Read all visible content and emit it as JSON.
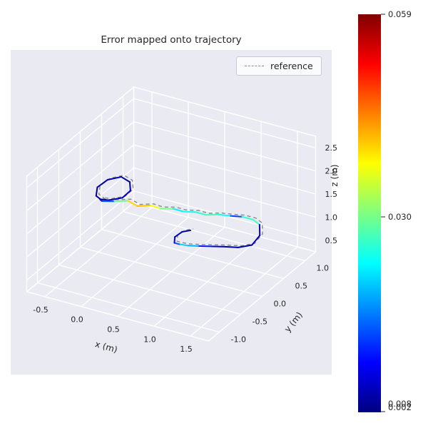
{
  "chart_data": {
    "type": "line",
    "subtype": "trajectory-3d",
    "title": "Error mapped onto trajectory",
    "legend_label": "reference",
    "xlabel": "x (m)",
    "ylabel": "y (m)",
    "zlabel": "z (m)",
    "axes": {
      "x_range": [
        -0.75,
        1.75
      ],
      "y_range": [
        -1.25,
        1.25
      ],
      "z_range": [
        0.25,
        2.75
      ],
      "x_ticks": [
        -0.5,
        0.0,
        0.5,
        1.0,
        1.5
      ],
      "y_ticks": [
        -1.0,
        -0.5,
        0.0,
        0.5,
        1.0
      ],
      "z_ticks": [
        0.5,
        1.0,
        1.5,
        2.0,
        2.5
      ],
      "grid": true,
      "legend_position": "upper right"
    },
    "colorbar": {
      "colormap": "jet",
      "vmin": 0.002,
      "vmax": 0.059,
      "ticks": [
        {
          "label": "0.059",
          "frac": 1.0
        },
        {
          "label": "0.030",
          "frac": 0.491
        }
      ],
      "bottom_overlapping_labels": [
        "0.008",
        "0.002"
      ]
    },
    "reference_offset": [
      0.02,
      0.03,
      0.02
    ],
    "trajectory": {
      "note": "points as [x, y, z, error_m]",
      "points": [
        [
          -0.5,
          0.1,
          1.28,
          0.004
        ],
        [
          -0.62,
          0.15,
          1.3,
          0.003
        ],
        [
          -0.68,
          0.28,
          1.36,
          0.004
        ],
        [
          -0.62,
          0.42,
          1.44,
          0.005
        ],
        [
          -0.48,
          0.5,
          1.5,
          0.004
        ],
        [
          -0.34,
          0.46,
          1.48,
          0.004
        ],
        [
          -0.26,
          0.34,
          1.42,
          0.005
        ],
        [
          -0.3,
          0.22,
          1.34,
          0.006
        ],
        [
          -0.44,
          0.14,
          1.29,
          0.005
        ],
        [
          -0.55,
          0.12,
          1.28,
          0.004
        ],
        [
          -0.5,
          0.08,
          1.29,
          0.008
        ],
        [
          -0.35,
          0.12,
          1.32,
          0.02
        ],
        [
          -0.2,
          0.18,
          1.35,
          0.038
        ],
        [
          -0.05,
          0.14,
          1.33,
          0.042
        ],
        [
          0.1,
          0.2,
          1.36,
          0.04
        ],
        [
          0.25,
          0.17,
          1.38,
          0.034
        ],
        [
          0.4,
          0.22,
          1.4,
          0.026
        ],
        [
          0.55,
          0.2,
          1.42,
          0.019
        ],
        [
          0.7,
          0.24,
          1.44,
          0.03
        ],
        [
          0.85,
          0.22,
          1.46,
          0.022
        ],
        [
          1.0,
          0.26,
          1.5,
          0.032
        ],
        [
          1.15,
          0.28,
          1.52,
          0.016
        ],
        [
          1.3,
          0.3,
          1.55,
          0.01
        ],
        [
          1.45,
          0.3,
          1.55,
          0.042
        ],
        [
          1.55,
          0.28,
          1.5,
          0.012
        ],
        [
          1.6,
          0.2,
          1.35,
          0.006
        ],
        [
          1.58,
          0.05,
          1.25,
          0.004
        ],
        [
          1.45,
          -0.05,
          1.22,
          0.004
        ],
        [
          1.3,
          -0.1,
          1.21,
          0.005
        ],
        [
          1.15,
          -0.16,
          1.2,
          0.007
        ],
        [
          1.0,
          -0.22,
          1.19,
          0.014
        ],
        [
          0.88,
          -0.26,
          1.18,
          0.024
        ],
        [
          0.78,
          -0.29,
          1.19,
          0.018
        ],
        [
          0.72,
          -0.3,
          1.2,
          0.01
        ],
        [
          0.68,
          -0.22,
          1.25,
          0.006
        ],
        [
          0.72,
          -0.12,
          1.3,
          0.004
        ],
        [
          0.8,
          -0.06,
          1.32,
          0.003
        ]
      ]
    }
  },
  "style": {
    "figure_bg": "#ffffff",
    "axes_bg": "#eaeaf2",
    "grid_color": "#ffffff",
    "text_color": "#262626",
    "reference_color": "#8a8a8a"
  }
}
